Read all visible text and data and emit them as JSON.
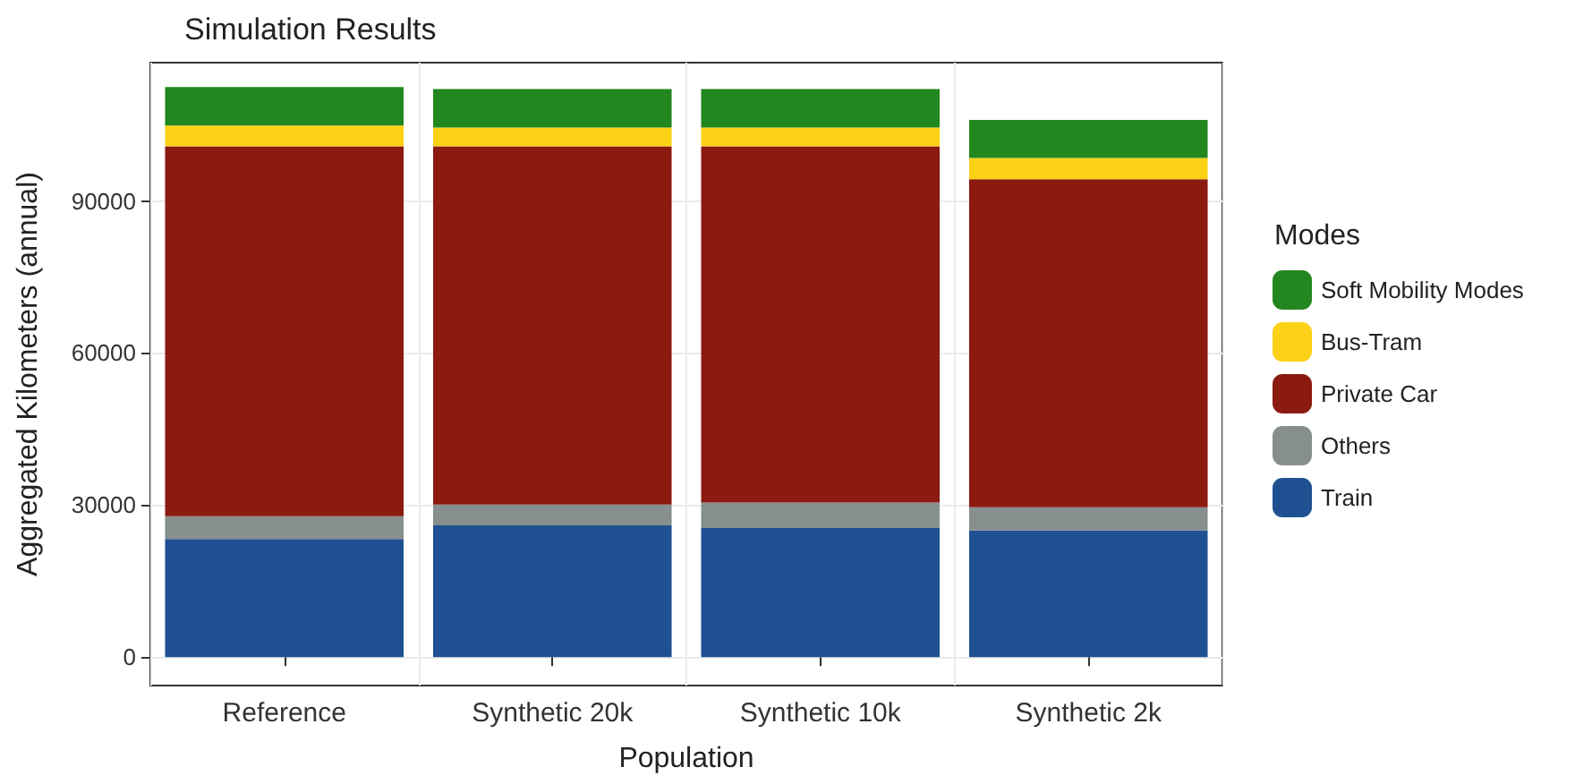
{
  "chart_data": {
    "type": "bar",
    "stacked": true,
    "title": "Simulation Results",
    "xlabel": "Population",
    "ylabel": "Aggregated Kilometers (annual)",
    "legend_title": "Modes",
    "legend": "right",
    "grid": true,
    "categories": [
      "Reference",
      "Synthetic 20k",
      "Synthetic 10k",
      "Synthetic 2k"
    ],
    "ylim": [
      -5600,
      117300
    ],
    "yticks": [
      0,
      30000,
      60000,
      90000
    ],
    "series": [
      {
        "name": "Train",
        "color": "#1f5192",
        "values": [
          23300,
          26000,
          25500,
          25000
        ]
      },
      {
        "name": "Others",
        "color": "#868e8e",
        "values": [
          4500,
          4100,
          5000,
          4600
        ]
      },
      {
        "name": "Private Car",
        "color": "#8b1a10",
        "values": [
          73000,
          70700,
          70300,
          64700
        ]
      },
      {
        "name": "Bus-Tram",
        "color": "#fcd116",
        "values": [
          4100,
          3700,
          3700,
          4200
        ]
      },
      {
        "name": "Soft Mobility Modes",
        "color": "#23871f",
        "values": [
          7600,
          7600,
          7600,
          7500
        ]
      }
    ]
  }
}
